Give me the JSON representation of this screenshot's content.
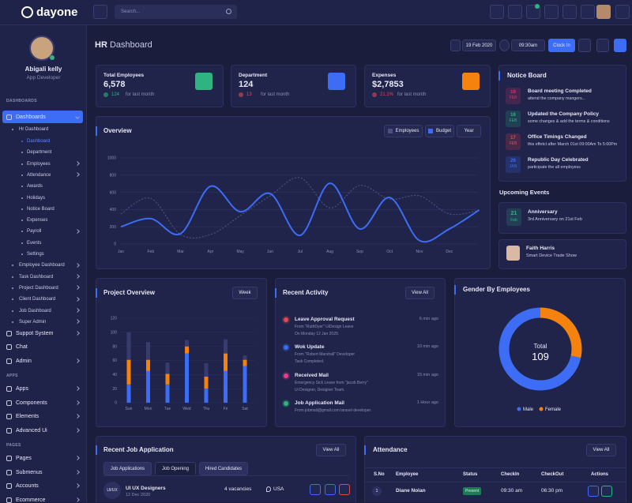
{
  "topbar": {
    "brand": "dayone",
    "search_placeholder": "Search..."
  },
  "sidebar": {
    "user": {
      "name": "Abigali kelly",
      "role": "App Developer"
    },
    "sections": [
      {
        "label": "DASHBOARDS",
        "items": [
          {
            "label": "Dashboards",
            "children": [
              {
                "label": "Hr Dashboard",
                "children": [
                  "Dashboard",
                  "Department",
                  "Employees",
                  "Attendance",
                  "Awards",
                  "Holidays",
                  "Notice Board",
                  "Expenses",
                  "Payroll",
                  "Events",
                  "Settings"
                ]
              },
              "Employee Dashboard",
              "Task Dashboard",
              "Project Dashboard",
              "Client Dashboard",
              "Job Dashboard",
              "Super Admin"
            ]
          },
          "Suppot System",
          "Chat",
          "Admin"
        ]
      },
      {
        "label": "APPS",
        "items": [
          "Apps",
          "Components",
          "Elements",
          "Advanced Ui"
        ]
      },
      {
        "label": "PAGES",
        "items": [
          "Pages",
          "Submenus",
          "Accounts",
          "Ecommerce"
        ]
      }
    ]
  },
  "header": {
    "title_bold": "HR",
    "title_rest": "Dashboard",
    "date": "19 Feb 2020",
    "time": "09:30am",
    "clock_in": "Clock In"
  },
  "stats": [
    {
      "label": "Total Employees",
      "value": "6,578",
      "change": "124",
      "change_text": "for last month"
    },
    {
      "label": "Department",
      "value": "124",
      "change": "13",
      "change_text": "for last month"
    },
    {
      "label": "Expenses",
      "value": "$2,7853",
      "change": "21.1%",
      "change_text": "for last month"
    }
  ],
  "notice_board": {
    "title": "Notice Board",
    "items": [
      {
        "day": "18",
        "month": "FEB",
        "title": "Board meeting Completed",
        "text": "attend the company mangers..."
      },
      {
        "day": "16",
        "month": "FEB",
        "title": "Updated the Company Policy",
        "text": "some changes & add the terms & conditions"
      },
      {
        "day": "17",
        "month": "FEB",
        "title": "Office Timings Changed",
        "text": "this effetct after March 01st 09:00Am To 5:00Pm"
      },
      {
        "day": "26",
        "month": "JAN",
        "title": "Republic Day Celebrated",
        "text": "participate the all employess"
      }
    ]
  },
  "upcoming_events": {
    "title": "Upcoming Events",
    "items": [
      {
        "day": "21",
        "month": "Feb",
        "title": "Anniversary",
        "text": "3rd Anniversary on 21st Feb"
      },
      {
        "title": "Faith Harris",
        "text": "Smart Device Trade Show"
      }
    ]
  },
  "overview": {
    "title": "Overview",
    "range": "Year",
    "chart": {
      "type": "line",
      "categories": [
        "Jan",
        "Feb",
        "Mar",
        "Apr",
        "May",
        "Jun",
        "Jul",
        "Aug",
        "Sep",
        "Oct",
        "Nov",
        "Dec",
        null
      ],
      "series": [
        {
          "name": "Employees",
          "color": "#4b5080",
          "dashed": true,
          "values": [
            350,
            530,
            110,
            110,
            330,
            560,
            770,
            420,
            680,
            520,
            560,
            350,
            390
          ]
        },
        {
          "name": "Budget",
          "color": "#3d6cf5",
          "values": [
            200,
            295,
            120,
            670,
            375,
            585,
            100,
            705,
            175,
            540,
            40,
            175,
            395
          ]
        }
      ],
      "ylim": [
        0,
        1000
      ],
      "yticks": [
        0,
        200,
        400,
        600,
        800,
        1000
      ],
      "grid": true
    }
  },
  "project_overview": {
    "title": "Project Overview",
    "range": "Week",
    "chart": {
      "type": "bar",
      "stacked": true,
      "categories": [
        "Sun",
        "Mon",
        "Tue",
        "Wed",
        "Thu",
        "Fri",
        "Sat"
      ],
      "series": [
        {
          "color": "#3d6cf5",
          "values": [
            26,
            45,
            26,
            70,
            20,
            45,
            52
          ]
        },
        {
          "color": "#f5820d",
          "values": [
            35,
            16,
            15,
            10,
            17,
            25,
            9
          ]
        },
        {
          "color": "#363c6e",
          "values": [
            39,
            25,
            16,
            9,
            19,
            20,
            6
          ]
        }
      ],
      "ylim": [
        0,
        120
      ],
      "yticks": [
        0,
        20,
        40,
        60,
        80,
        100,
        120
      ],
      "grid": true
    }
  },
  "recent_activity": {
    "title": "Recent Activity",
    "action": "View All",
    "items": [
      {
        "title": "Leave Approval Request",
        "time": "6 min ago",
        "lines": [
          "From \"RuthDyer\" UiDesign Leave",
          "On Monday 12 Jan 2020."
        ]
      },
      {
        "title": "Wok Update",
        "time": "10 min ago",
        "lines": [
          "From \"Robert Marshall\" Developer",
          "Task Completed."
        ]
      },
      {
        "title": "Received Mail",
        "time": "15 min ago",
        "lines": [
          "Emergency Sick Leave from \"jacob Berry\"",
          "Ui Designer, Designer Team."
        ]
      },
      {
        "title": "Job Application Mail",
        "time": "1 Hour ago",
        "lines": [
          "From jobmail@gmail.com laravel developer."
        ]
      }
    ]
  },
  "gender": {
    "title": "Gender By Employees",
    "center_label": "Total",
    "center_value": "109",
    "chart": {
      "type": "pie",
      "categories": [
        "Male",
        "Female"
      ],
      "values": [
        78,
        31
      ],
      "colors": [
        "#3d6cf5",
        "#f5820d"
      ]
    }
  },
  "job_applications": {
    "title": "Recent Job Application",
    "action": "View All",
    "tabs": [
      "Job Applications",
      "Job Opening",
      "Hired Candidates"
    ],
    "rows": [
      {
        "badge": "UI/UX",
        "title": "UI UX Designers",
        "date": "12 Dec 2020",
        "vacancies": "4 vacancies",
        "location": "USA"
      }
    ]
  },
  "attendance": {
    "title": "Attendance",
    "action": "View All",
    "columns": [
      "S.No",
      "Employee",
      "Status",
      "CheckIn",
      "CheckOut",
      "Actions"
    ],
    "rows": [
      [
        "1",
        "Diane Nolan",
        "Present",
        "09:30 am",
        "06:30 pm"
      ]
    ]
  }
}
